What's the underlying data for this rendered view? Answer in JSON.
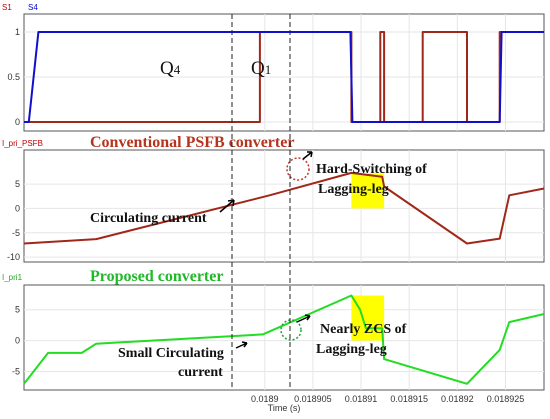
{
  "chart_data": [
    {
      "type": "line",
      "panel_label_parts": [
        "S1",
        "S4"
      ],
      "ylim": [
        -0.1,
        1.2
      ],
      "yticks": [
        "0",
        "0.5",
        "1"
      ],
      "xlim": [
        0.018875,
        0.018929
      ],
      "series": [
        {
          "name": "S1",
          "color": "#a0281a",
          "points": [
            [
              0.018875,
              0
            ],
            [
              0.018881,
              0
            ],
            [
              0.018881,
              0
            ],
            [
              0.0188995,
              0
            ],
            [
              0.0188995,
              1
            ],
            [
              0.018909,
              1
            ],
            [
              0.018909,
              0
            ],
            [
              0.018912,
              0
            ],
            [
              0.018912,
              1
            ],
            [
              0.0189124,
              1
            ],
            [
              0.0189124,
              0
            ],
            [
              0.0189164,
              0
            ],
            [
              0.0189164,
              1
            ],
            [
              0.018921,
              1
            ],
            [
              0.018921,
              0
            ],
            [
              0.0189244,
              0
            ],
            [
              0.0189244,
              1
            ],
            [
              0.018929,
              1
            ]
          ]
        },
        {
          "name": "S4",
          "color": "#1010cc",
          "points": [
            [
              0.018875,
              0
            ],
            [
              0.0188755,
              0
            ],
            [
              0.0188765,
              1
            ],
            [
              0.0189089,
              1
            ],
            [
              0.0189091,
              0
            ],
            [
              0.0189244,
              0
            ],
            [
              0.0189246,
              1
            ],
            [
              0.018929,
              1
            ]
          ]
        }
      ],
      "annotations": [
        {
          "main": "Q",
          "sub": "4"
        },
        {
          "main": "Q",
          "sub": "1"
        }
      ]
    },
    {
      "type": "line",
      "panel_label": "I_pri_PSFB",
      "heading": "Conventional PSFB converter",
      "ylim": [
        -11,
        12
      ],
      "yticks": [
        "-10",
        "-5",
        "0",
        "5"
      ],
      "xlim": [
        0.018875,
        0.018929
      ],
      "series": [
        {
          "name": "I_pri_PSFB",
          "color": "#a0281a",
          "points": [
            [
              0.018875,
              -7.2
            ],
            [
              0.0188825,
              -6.3
            ],
            [
              0.0189005,
              2.7
            ],
            [
              0.018909,
              7.3
            ],
            [
              0.0189122,
              6.5
            ],
            [
              0.0189124,
              4.5
            ],
            [
              0.018921,
              -7.2
            ],
            [
              0.0189244,
              -6.2
            ],
            [
              0.0189254,
              2.7
            ],
            [
              0.018929,
              4.1
            ]
          ]
        }
      ],
      "shaded_region": {
        "x": [
          0.018909,
          0.0189124
        ],
        "y": [
          0,
          7.2
        ],
        "color": "#ffff00"
      },
      "annotations": [
        "Circulating current",
        "Hard-Switching of",
        "Lagging-leg"
      ]
    },
    {
      "type": "line",
      "panel_label": "I_pri1",
      "heading": "Proposed converter",
      "ylim": [
        -8,
        9
      ],
      "yticks": [
        "-5",
        "0",
        "5"
      ],
      "xlim": [
        0.018875,
        0.018929
      ],
      "xticks": [
        "0.0189",
        "0.018905",
        "0.01891",
        "0.018915",
        "0.01892",
        "0.018925"
      ],
      "xlabel": "Time (s)",
      "series": [
        {
          "name": "I_pri1",
          "color": "#22dd22",
          "points": [
            [
              0.018875,
              -7
            ],
            [
              0.0188775,
              -2
            ],
            [
              0.018881,
              -2
            ],
            [
              0.0188825,
              -0.5
            ],
            [
              0.0188998,
              1
            ],
            [
              0.018909,
              7.3
            ],
            [
              0.0189099,
              5
            ],
            [
              0.0189105,
              2
            ],
            [
              0.0189122,
              2
            ],
            [
              0.0189124,
              -3
            ],
            [
              0.018921,
              -7
            ],
            [
              0.0189244,
              -1.5
            ],
            [
              0.0189254,
              3
            ],
            [
              0.018929,
              4.3
            ]
          ]
        }
      ],
      "shaded_region": {
        "x": [
          0.018909,
          0.0189124
        ],
        "y": [
          0,
          7.3
        ],
        "color": "#ffff00"
      },
      "annotations": [
        "Small Circulating",
        "current",
        "Nearly ZCS of",
        "Lagging-leg"
      ]
    }
  ]
}
